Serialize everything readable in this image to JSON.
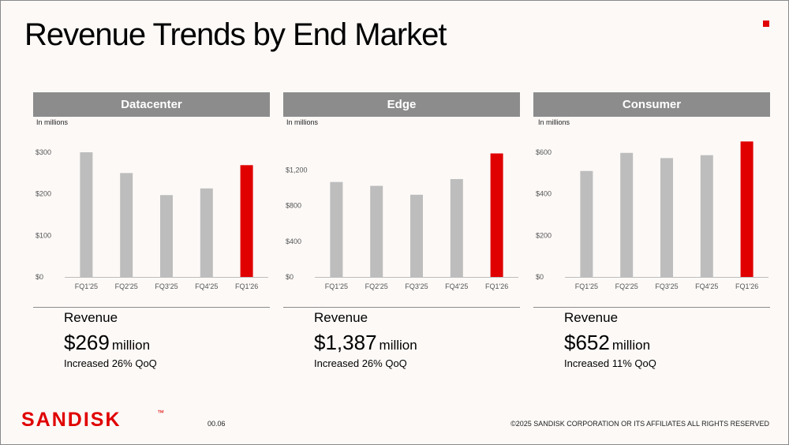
{
  "title": "Revenue Trends by End Market",
  "colors": {
    "accent": "#e00000",
    "bar_gray": "#bdbdbd",
    "header_gray": "#8c8c8c",
    "background": "#fcf9f7"
  },
  "chart_data": [
    {
      "type": "bar",
      "title": "Datacenter",
      "ylabel": "In millions",
      "categories": [
        "FQ1'25",
        "FQ2'25",
        "FQ3'25",
        "FQ4'25",
        "FQ1'26"
      ],
      "values": [
        300,
        250,
        197,
        213,
        269
      ],
      "yticks": [
        0,
        100,
        200,
        300
      ],
      "ytick_labels": [
        "$0",
        "$100",
        "$200",
        "$300"
      ],
      "ylim": [
        0,
        300
      ],
      "highlight_index": 4,
      "grid": false
    },
    {
      "type": "bar",
      "title": "Edge",
      "ylabel": "In millions",
      "categories": [
        "FQ1'25",
        "FQ2'25",
        "FQ3'25",
        "FQ4'25",
        "FQ1'26"
      ],
      "values": [
        1066,
        1023,
        923,
        1099,
        1387
      ],
      "yticks": [
        0,
        400,
        800,
        1200
      ],
      "ytick_labels": [
        "$0",
        "$400",
        "$800",
        "$1,200"
      ],
      "ylim": [
        0,
        1400
      ],
      "highlight_index": 4,
      "grid": false
    },
    {
      "type": "bar",
      "title": "Consumer",
      "ylabel": "In millions",
      "categories": [
        "FQ1'25",
        "FQ2'25",
        "FQ3'25",
        "FQ4'25",
        "FQ1'26"
      ],
      "values": [
        510,
        597,
        572,
        586,
        652
      ],
      "yticks": [
        0,
        200,
        400,
        600
      ],
      "ytick_labels": [
        "$0",
        "$200",
        "$400",
        "$600"
      ],
      "ylim": [
        0,
        600
      ],
      "highlight_index": 4,
      "grid": false
    }
  ],
  "summaries": [
    {
      "label": "Revenue",
      "amount": "$269",
      "unit": "million",
      "change": "Increased 26% QoQ"
    },
    {
      "label": "Revenue",
      "amount": "$1,387",
      "unit": "million",
      "change": "Increased 26% QoQ"
    },
    {
      "label": "Revenue",
      "amount": "$652",
      "unit": "million",
      "change": "Increased 11% QoQ"
    }
  ],
  "footer": {
    "logo_text": "SANDISK",
    "trademark": "™",
    "page_number": "00.06",
    "copyright": "©2025 SANDISK CORPORATION OR ITS AFFILIATES ALL RIGHTS RESERVED"
  }
}
